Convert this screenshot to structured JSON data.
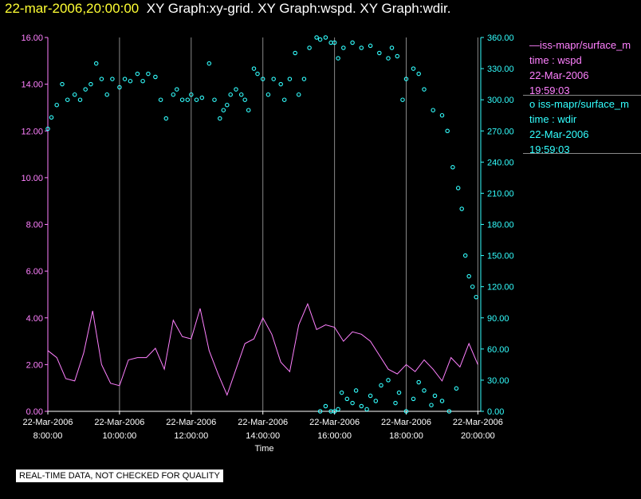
{
  "header": {
    "timestamp": "22-mar-2006,20:00:00",
    "graphs": "XY Graph:xy-grid.  XY Graph:wspd.  XY Graph:wdir."
  },
  "legend": {
    "wspd": {
      "line1": "—iss-mapr/surface_m",
      "line2": "time : wspd",
      "line3": "22-Mar-2006",
      "line4": "19:59:03"
    },
    "wdir": {
      "line1": "o  iss-mapr/surface_m",
      "line2": "time : wdir",
      "line3": "22-Mar-2006",
      "line4": "19:59:03"
    }
  },
  "disclaimer": "REAL-TIME DATA, NOT CHECKED FOR QUALITY",
  "colors": {
    "wspd": "#ff80ff",
    "wdir": "#33ffff",
    "grid": "#888888",
    "background": "#000000"
  },
  "chart_data": {
    "type": "line",
    "xlabel": "Time",
    "xlim": [
      8.0,
      20.08
    ],
    "x_ticks": [
      {
        "x": 8,
        "date": "22-Mar-2006",
        "time": "8:00:00"
      },
      {
        "x": 10,
        "date": "22-Mar-2006",
        "time": "10:00:00"
      },
      {
        "x": 12,
        "date": "22-Mar-2006",
        "time": "12:00:00"
      },
      {
        "x": 14,
        "date": "22-Mar-2006",
        "time": "14:00:00"
      },
      {
        "x": 16,
        "date": "22-Mar-2006",
        "time": "16:00:00"
      },
      {
        "x": 18,
        "date": "22-Mar-2006",
        "time": "18:00:00"
      },
      {
        "x": 20,
        "date": "22-Mar-2006",
        "time": "20:00:00"
      }
    ],
    "y_left": {
      "ylim": [
        0,
        16
      ],
      "ticks": [
        "0.00",
        "2.00",
        "4.00",
        "6.00",
        "8.00",
        "10.00",
        "12.00",
        "14.00",
        "16.00"
      ]
    },
    "y_right": {
      "ylim": [
        0,
        360
      ],
      "ticks": [
        "0.00",
        "30.00",
        "60.00",
        "90.00",
        "120.00",
        "150.00",
        "180.00",
        "210.00",
        "240.00",
        "270.00",
        "300.00",
        "330.00",
        "360.00"
      ]
    },
    "grid": "vertical",
    "series": [
      {
        "name": "wspd",
        "axis": "left",
        "style": "line",
        "x": [
          8.0,
          8.25,
          8.5,
          8.75,
          9.0,
          9.25,
          9.5,
          9.75,
          10.0,
          10.25,
          10.5,
          10.75,
          11.0,
          11.25,
          11.5,
          11.75,
          12.0,
          12.25,
          12.5,
          12.75,
          13.0,
          13.25,
          13.5,
          13.75,
          14.0,
          14.25,
          14.5,
          14.75,
          15.0,
          15.25,
          15.5,
          15.75,
          16.0,
          16.25,
          16.5,
          16.75,
          17.0,
          17.25,
          17.5,
          17.75,
          18.0,
          18.25,
          18.5,
          18.75,
          19.0,
          19.25,
          19.5,
          19.75,
          20.0
        ],
        "values": [
          2.6,
          2.3,
          1.4,
          1.3,
          2.5,
          4.3,
          2.0,
          1.2,
          1.1,
          2.2,
          2.3,
          2.3,
          2.7,
          1.8,
          3.9,
          3.2,
          3.1,
          4.4,
          2.6,
          1.6,
          0.7,
          1.8,
          2.9,
          3.1,
          4.0,
          3.3,
          2.1,
          1.7,
          3.7,
          4.6,
          3.5,
          3.7,
          3.6,
          3.0,
          3.4,
          3.3,
          3.0,
          2.4,
          1.8,
          1.6,
          2.0,
          1.7,
          2.2,
          1.8,
          1.3,
          2.3,
          1.9,
          2.9,
          2.0
        ]
      },
      {
        "name": "wdir",
        "axis": "right",
        "style": "circle",
        "x": [
          8.0,
          8.1,
          8.25,
          8.4,
          8.55,
          8.75,
          8.9,
          9.05,
          9.2,
          9.35,
          9.5,
          9.65,
          9.8,
          10.0,
          10.15,
          10.3,
          10.5,
          10.65,
          10.8,
          11.0,
          11.15,
          11.3,
          11.5,
          11.6,
          11.75,
          11.9,
          12.0,
          12.15,
          12.3,
          12.5,
          12.65,
          12.8,
          12.9,
          13.0,
          13.1,
          13.25,
          13.4,
          13.5,
          13.6,
          13.75,
          13.85,
          14.0,
          14.15,
          14.3,
          14.5,
          14.6,
          14.75,
          14.9,
          15.0,
          15.15,
          15.3,
          15.5,
          15.6,
          15.75,
          15.9,
          16.0,
          16.1,
          16.25,
          16.5,
          16.75,
          17.0,
          17.25,
          17.5,
          17.6,
          17.75,
          17.9,
          18.0,
          18.2,
          18.35,
          18.5,
          18.75,
          19.0,
          19.15,
          19.3,
          19.45,
          19.55,
          19.65,
          19.75,
          19.85,
          19.95,
          15.6,
          15.75,
          15.9,
          16.0,
          16.1,
          16.2,
          16.35,
          16.5,
          16.6,
          16.75,
          16.9,
          17.0,
          17.15,
          17.3,
          17.5,
          17.7,
          17.8,
          18.0,
          18.2,
          18.35,
          18.5,
          18.7,
          18.8,
          19.0,
          19.2,
          19.4
        ],
        "values": [
          272,
          283,
          295,
          315,
          300,
          305,
          300,
          310,
          315,
          335,
          320,
          305,
          320,
          312,
          320,
          318,
          325,
          318,
          325,
          322,
          300,
          282,
          305,
          310,
          300,
          300,
          305,
          300,
          302,
          335,
          300,
          282,
          290,
          295,
          305,
          310,
          305,
          300,
          290,
          330,
          325,
          320,
          305,
          320,
          315,
          300,
          320,
          345,
          305,
          320,
          350,
          360,
          358,
          360,
          355,
          355,
          340,
          350,
          355,
          350,
          352,
          345,
          340,
          350,
          342,
          300,
          320,
          330,
          325,
          310,
          290,
          285,
          270,
          235,
          215,
          195,
          150,
          130,
          120,
          110,
          0,
          5,
          0,
          0,
          2,
          18,
          12,
          8,
          20,
          5,
          2,
          15,
          10,
          25,
          30,
          8,
          18,
          0,
          12,
          28,
          20,
          6,
          15,
          10,
          0,
          22
        ]
      }
    ]
  }
}
